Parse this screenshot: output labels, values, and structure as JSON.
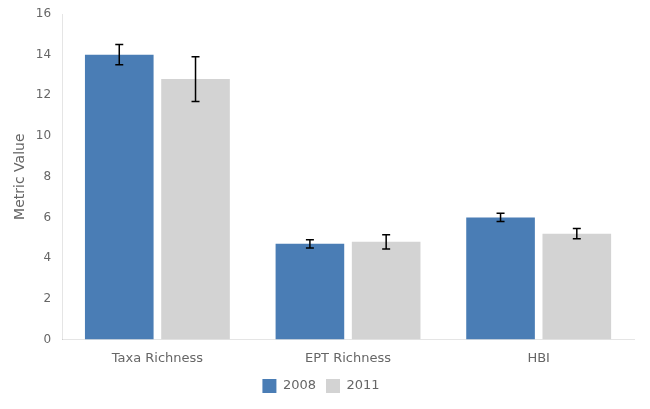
{
  "chart_data": {
    "type": "bar",
    "categories": [
      "Taxa Richness",
      "EPT Richness",
      "HBI"
    ],
    "series": [
      {
        "name": "2008",
        "color": "#4A7DB5",
        "values": [
          14.0,
          4.7,
          6.0
        ],
        "errors": [
          0.5,
          0.2,
          0.2
        ]
      },
      {
        "name": "2011",
        "color": "#D3D3D3",
        "values": [
          12.8,
          4.8,
          5.2
        ],
        "errors": [
          1.1,
          0.35,
          0.25
        ]
      }
    ],
    "ylabel": "Metric Value",
    "ylim": [
      0,
      16
    ],
    "yticks": [
      0,
      2,
      4,
      6,
      8,
      10,
      12,
      14,
      16
    ],
    "grid": false,
    "legend": "bottom"
  }
}
